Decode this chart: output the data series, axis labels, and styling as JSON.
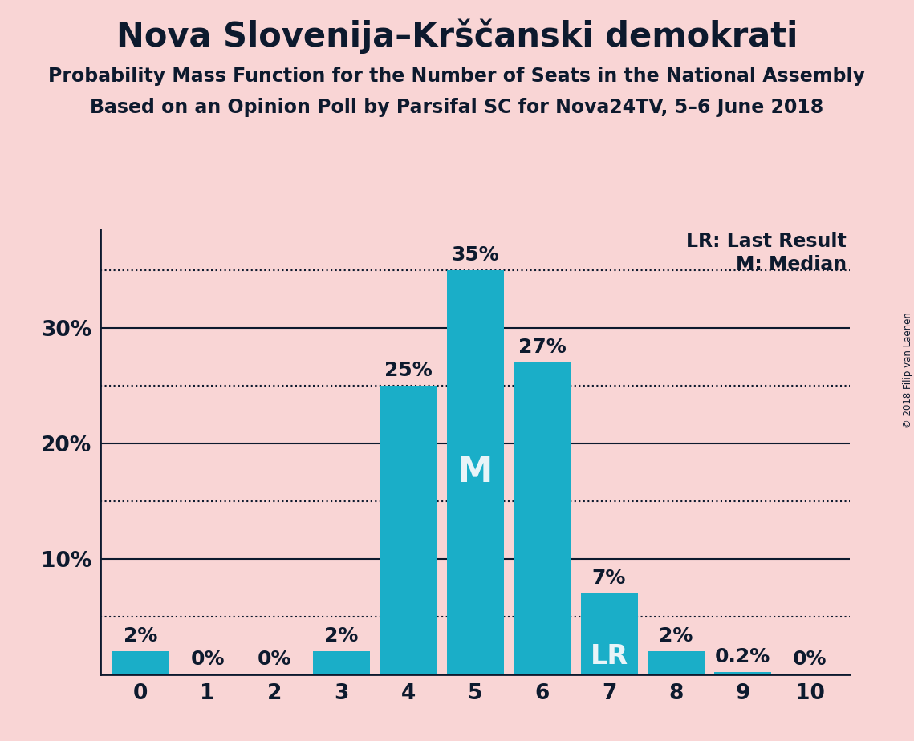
{
  "title": "Nova Slovenija–Krščanski demokrati",
  "subtitle1": "Probability Mass Function for the Number of Seats in the National Assembly",
  "subtitle2": "Based on an Opinion Poll by Parsifal SC for Nova24TV, 5–6 June 2018",
  "copyright": "© 2018 Filip van Laenen",
  "categories": [
    0,
    1,
    2,
    3,
    4,
    5,
    6,
    7,
    8,
    9,
    10
  ],
  "values": [
    0.02,
    0.0,
    0.0,
    0.02,
    0.25,
    0.35,
    0.27,
    0.07,
    0.02,
    0.002,
    0.0
  ],
  "labels": [
    "2%",
    "0%",
    "0%",
    "2%",
    "25%",
    "35%",
    "27%",
    "7%",
    "2%",
    "0.2%",
    "0%"
  ],
  "bar_color": "#1aaec8",
  "median_bar": 5,
  "lr_bar": 7,
  "median_label": "M",
  "lr_label": "LR",
  "bar_label_color_default": "#0d1a2e",
  "bar_label_color_special": "#e8f4f8",
  "legend_lr": "LR: Last Result",
  "legend_m": "M: Median",
  "background_color": "#f9d5d5",
  "title_color": "#0d1a2e",
  "axis_color": "#0d1a2e",
  "grid_color": "#0d1a2e",
  "yticks": [
    0.0,
    0.1,
    0.2,
    0.3
  ],
  "ytick_labels": [
    "",
    "10%",
    "20%",
    "30%"
  ],
  "solid_lines": [
    0.1,
    0.2,
    0.3
  ],
  "dotted_lines": [
    0.05,
    0.15,
    0.25,
    0.35
  ],
  "ylim": [
    0,
    0.385
  ],
  "title_fontsize": 30,
  "subtitle_fontsize": 17,
  "label_fontsize": 18,
  "tick_fontsize": 19,
  "median_inside_fontsize": 32,
  "lr_inside_fontsize": 24,
  "legend_fontsize": 17
}
